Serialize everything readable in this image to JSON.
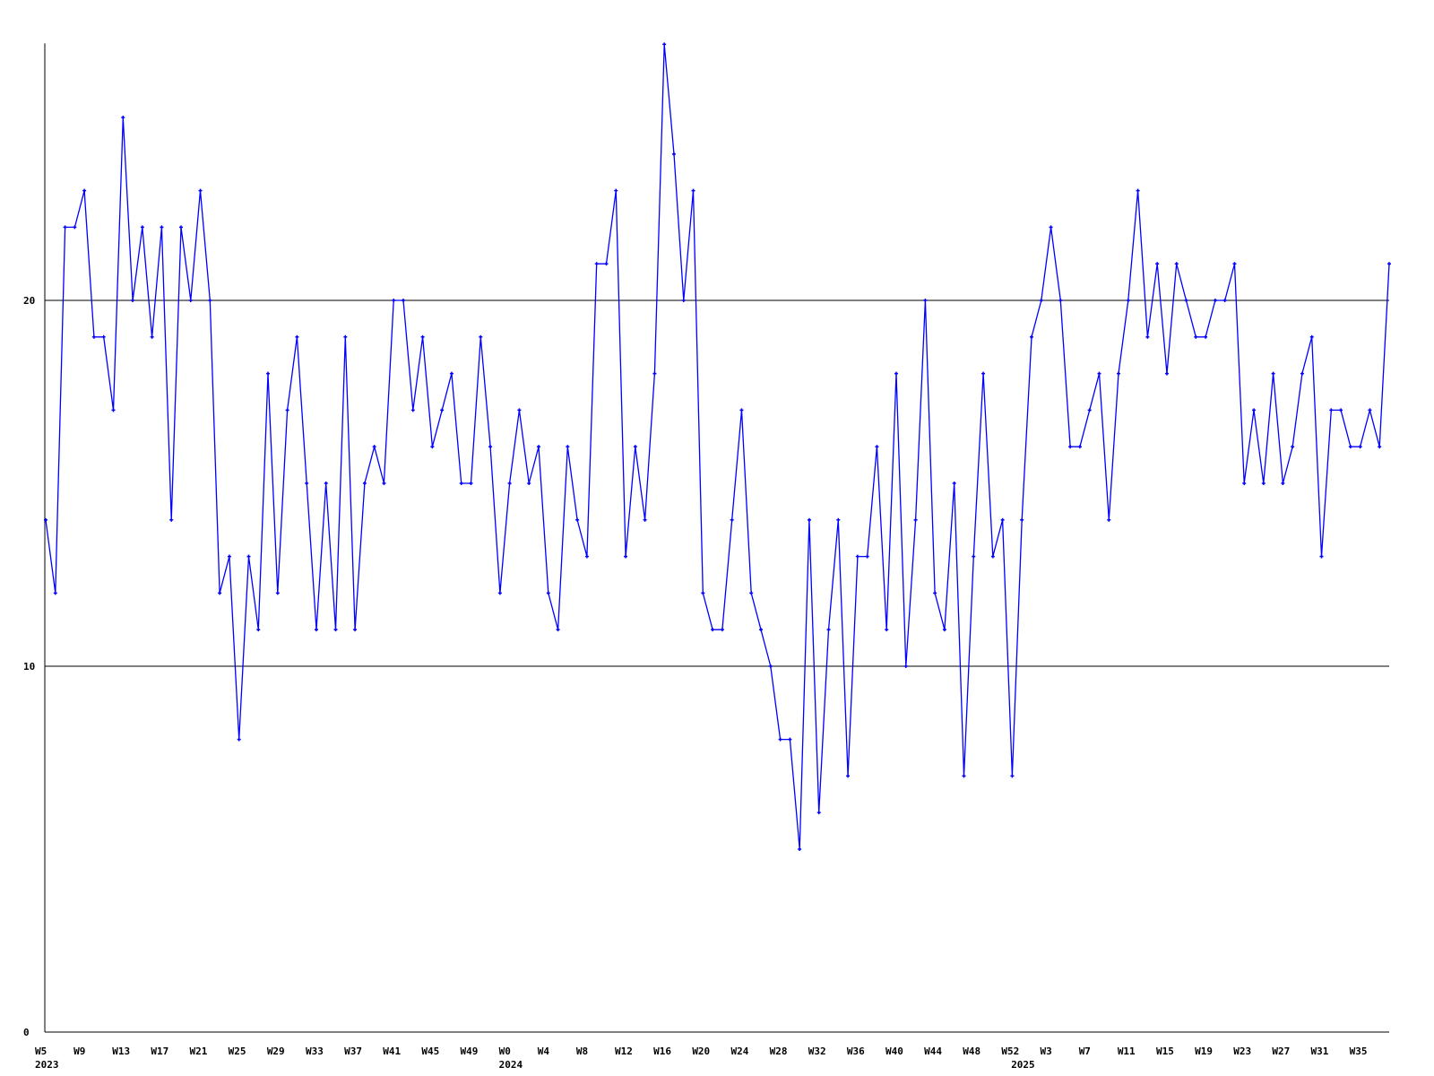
{
  "chart_data": {
    "type": "line",
    "title": "",
    "xlabel": "",
    "ylabel": "",
    "ylim": [
      0,
      27
    ],
    "grid": "horizontal lines at 10 and 20",
    "y_ticks": [
      0,
      10,
      20
    ],
    "y_tick_labels": [
      "0",
      "10",
      "20"
    ],
    "x_tick_labels": [
      {
        "index": 0,
        "label": "W5"
      },
      {
        "index": 4,
        "label": "W9"
      },
      {
        "index": 8,
        "label": "W13"
      },
      {
        "index": 12,
        "label": "W17"
      },
      {
        "index": 16,
        "label": "W21"
      },
      {
        "index": 20,
        "label": "W25"
      },
      {
        "index": 24,
        "label": "W29"
      },
      {
        "index": 28,
        "label": "W33"
      },
      {
        "index": 32,
        "label": "W37"
      },
      {
        "index": 36,
        "label": "W41"
      },
      {
        "index": 40,
        "label": "W45"
      },
      {
        "index": 44,
        "label": "W49"
      },
      {
        "index": 48,
        "label": "W0"
      },
      {
        "index": 52,
        "label": "W4"
      },
      {
        "index": 56,
        "label": "W8"
      },
      {
        "index": 60,
        "label": "W12"
      },
      {
        "index": 64,
        "label": "W16"
      },
      {
        "index": 68,
        "label": "W20"
      },
      {
        "index": 72,
        "label": "W24"
      },
      {
        "index": 76,
        "label": "W28"
      },
      {
        "index": 80,
        "label": "W32"
      },
      {
        "index": 84,
        "label": "W36"
      },
      {
        "index": 88,
        "label": "W40"
      },
      {
        "index": 92,
        "label": "W44"
      },
      {
        "index": 96,
        "label": "W48"
      },
      {
        "index": 100,
        "label": "W52"
      },
      {
        "index": 104,
        "label": "W3"
      },
      {
        "index": 108,
        "label": "W7"
      },
      {
        "index": 112,
        "label": "W11"
      },
      {
        "index": 116,
        "label": "W15"
      },
      {
        "index": 120,
        "label": "W19"
      },
      {
        "index": 124,
        "label": "W23"
      },
      {
        "index": 128,
        "label": "W27"
      },
      {
        "index": 132,
        "label": "W31"
      },
      {
        "index": 136,
        "label": "W35"
      }
    ],
    "year_labels": [
      {
        "index": 0,
        "label": "2023"
      },
      {
        "index": 48,
        "label": "2024"
      },
      {
        "index": 101,
        "label": "2025"
      }
    ],
    "series": [
      {
        "color": "#0000ff",
        "values": [
          14,
          12,
          22,
          22,
          23,
          19,
          19,
          17,
          25,
          20,
          22,
          19,
          22,
          14,
          22,
          20,
          23,
          20,
          12,
          13,
          8,
          13,
          11,
          18,
          12,
          17,
          19,
          15,
          11,
          15,
          11,
          19,
          11,
          15,
          16,
          15,
          20,
          20,
          17,
          19,
          16,
          17,
          18,
          15,
          15,
          19,
          16,
          12,
          15,
          17,
          15,
          16,
          12,
          11,
          16,
          14,
          13,
          21,
          21,
          23,
          13,
          16,
          14,
          18,
          27,
          24,
          20,
          23,
          12,
          11,
          11,
          14,
          17,
          12,
          11,
          10,
          8,
          8,
          5,
          14,
          6,
          11,
          14,
          7,
          13,
          13,
          16,
          11,
          18,
          10,
          14,
          20,
          12,
          11,
          15,
          7,
          13,
          18,
          13,
          14,
          7,
          14,
          19,
          20,
          22,
          20,
          16,
          16,
          17,
          18,
          14,
          18,
          20,
          23,
          19,
          21,
          18,
          21,
          20,
          19,
          19,
          20,
          20,
          21,
          15,
          17,
          15,
          18,
          15,
          16,
          18,
          19,
          13,
          17,
          17,
          16,
          16,
          17,
          16,
          21
        ]
      }
    ]
  }
}
